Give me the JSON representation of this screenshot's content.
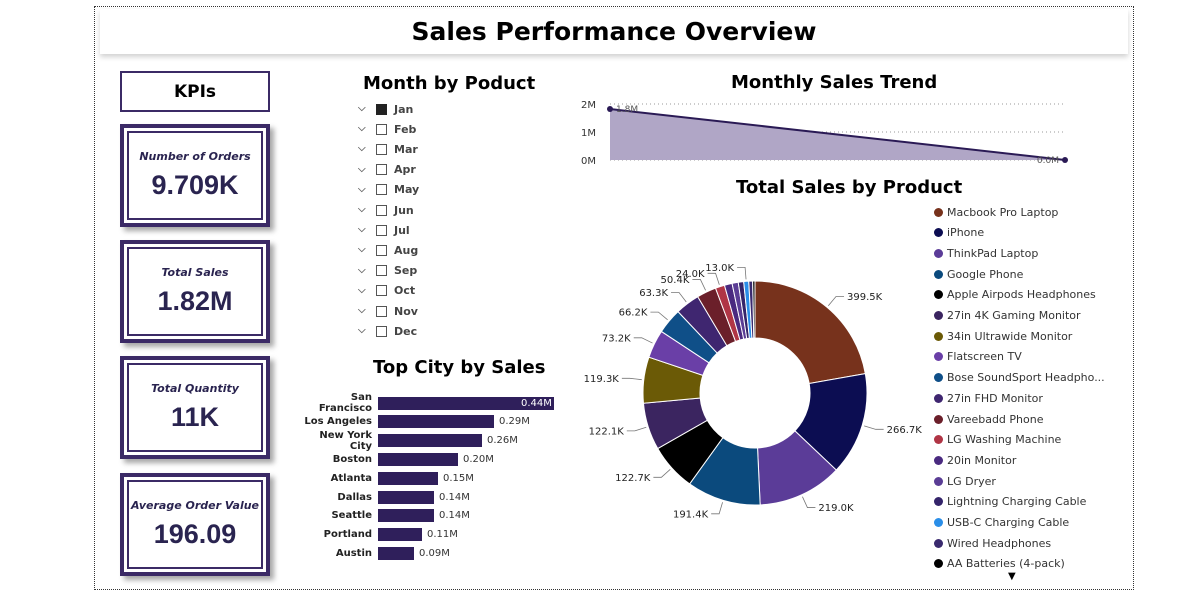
{
  "page": {
    "title": "Sales Performance Overview"
  },
  "kpis": {
    "header": "KPIs",
    "cards": [
      {
        "label": "Number of Orders",
        "value": "9.709K"
      },
      {
        "label": "Total Sales",
        "value": "1.82M"
      },
      {
        "label": "Total Quantity",
        "value": "11K"
      },
      {
        "label": "Average Order Value",
        "value": "196.09"
      }
    ]
  },
  "month_slicer": {
    "title": "Month by Poduct",
    "items": [
      {
        "label": "Jan",
        "checked": true
      },
      {
        "label": "Feb",
        "checked": false
      },
      {
        "label": "Mar",
        "checked": false
      },
      {
        "label": "Apr",
        "checked": false
      },
      {
        "label": "May",
        "checked": false
      },
      {
        "label": "Jun",
        "checked": false
      },
      {
        "label": "Jul",
        "checked": false
      },
      {
        "label": "Aug",
        "checked": false
      },
      {
        "label": "Sep",
        "checked": false
      },
      {
        "label": "Oct",
        "checked": false
      },
      {
        "label": "Nov",
        "checked": false
      },
      {
        "label": "Dec",
        "checked": false
      }
    ]
  },
  "colors": {
    "accent": "#3b2a66",
    "bar": "#2f1f5b",
    "area_fill": "#b0a6c6",
    "area_line": "#2a1a55"
  },
  "chart_data": [
    {
      "type": "area",
      "title": "Monthly Sales Trend",
      "y_ticks": [
        "2M",
        "1M",
        "0M"
      ],
      "ylim": [
        0,
        2000000
      ],
      "point_labels": [
        "1.8M",
        "0.0M"
      ],
      "values": [
        1820000,
        0
      ],
      "grid": true
    },
    {
      "type": "bar",
      "orientation": "horizontal",
      "title": "Top City by Sales",
      "categories": [
        "San Francisco",
        "Los Angeles",
        "New York City",
        "Boston",
        "Atlanta",
        "Dallas",
        "Seattle",
        "Portland",
        "Austin"
      ],
      "values": [
        0.44,
        0.29,
        0.26,
        0.2,
        0.15,
        0.14,
        0.14,
        0.11,
        0.09
      ],
      "value_labels": [
        "0.44M",
        "0.29M",
        "0.26M",
        "0.20M",
        "0.15M",
        "0.14M",
        "0.14M",
        "0.11M",
        "0.09M"
      ]
    },
    {
      "type": "pie",
      "donut": true,
      "title": "Total Sales by Product",
      "legend_position": "right",
      "slices": [
        {
          "name": "Macbook Pro Laptop",
          "value": 399.5,
          "label": "399.5K",
          "color": "#77321c"
        },
        {
          "name": "iPhone",
          "value": 266.7,
          "label": "266.7K",
          "color": "#0c0d52"
        },
        {
          "name": "ThinkPad Laptop",
          "value": 219.0,
          "label": "219.0K",
          "color": "#5b3c98"
        },
        {
          "name": "Google Phone",
          "value": 191.4,
          "label": "191.4K",
          "color": "#0b4a7d"
        },
        {
          "name": "Apple Airpods Headphones",
          "value": 122.7,
          "label": "122.7K",
          "color": "#000000"
        },
        {
          "name": "27in 4K Gaming Monitor",
          "value": 122.1,
          "label": "122.1K",
          "color": "#3b2560"
        },
        {
          "name": "34in Ultrawide Monitor",
          "value": 119.3,
          "label": "119.3K",
          "color": "#6b5a06"
        },
        {
          "name": "Flatscreen TV",
          "value": 73.2,
          "label": "73.2K",
          "color": "#6a3fa7"
        },
        {
          "name": "Bose SoundSport Headpho...",
          "value": 66.2,
          "label": "66.2K",
          "color": "#0f4f88"
        },
        {
          "name": "27in FHD Monitor",
          "value": 63.3,
          "label": "63.3K",
          "color": "#3f2670"
        },
        {
          "name": "Vareebadd Phone",
          "value": 50.4,
          "label": "50.4K",
          "color": "#6b1f2a"
        },
        {
          "name": "LG Washing Machine",
          "value": 24.0,
          "label": "24.0K",
          "color": "#b03545"
        },
        {
          "name": "20in Monitor",
          "value": 20.0,
          "label": "",
          "color": "#4a2a80"
        },
        {
          "name": "LG Dryer",
          "value": 16.0,
          "label": "",
          "color": "#5a3d95"
        },
        {
          "name": "Lightning Charging Cable",
          "value": 14.0,
          "label": "",
          "color": "#34246a"
        },
        {
          "name": "USB-C Charging Cable",
          "value": 13.0,
          "label": "13.0K",
          "color": "#2a8ee8"
        },
        {
          "name": "Wired Headphones",
          "value": 10.0,
          "label": "",
          "color": "#3a2a6e"
        },
        {
          "name": "AA Batteries (4-pack)",
          "value": 6.0,
          "label": "",
          "color": "#000000"
        }
      ]
    }
  ]
}
